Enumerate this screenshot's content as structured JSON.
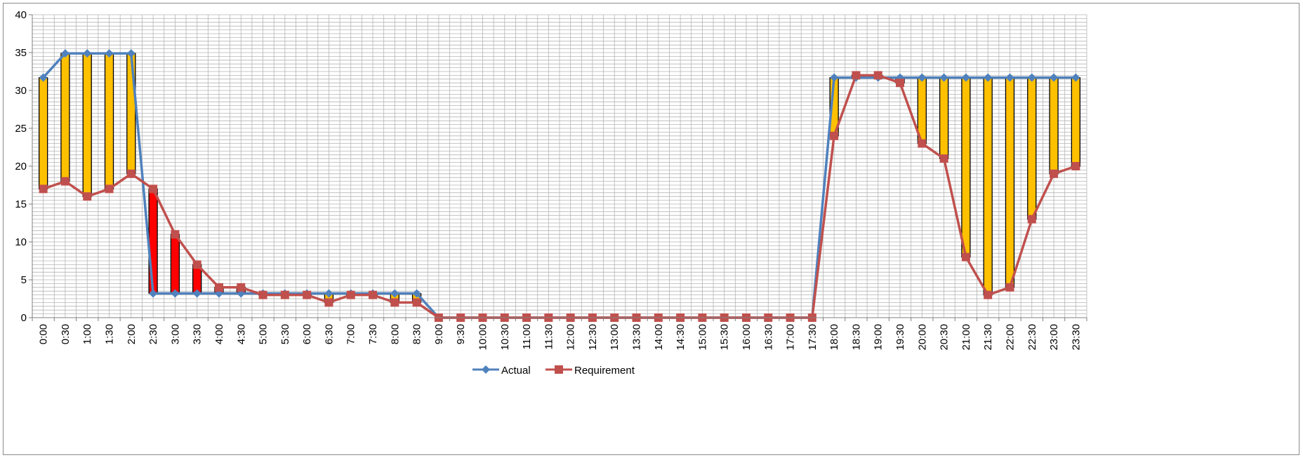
{
  "chart_data": {
    "type": "line",
    "title": "",
    "xlabel": "",
    "ylabel": "",
    "ylim": [
      0,
      40
    ],
    "y_ticks": [
      0,
      5,
      10,
      15,
      20,
      25,
      30,
      35,
      40
    ],
    "grid": true,
    "legend_position": "bottom",
    "categories": [
      "0:00",
      "0:30",
      "1:00",
      "1:30",
      "2:00",
      "2:30",
      "3:00",
      "3:30",
      "4:00",
      "4:30",
      "5:00",
      "5:30",
      "6:00",
      "6:30",
      "7:00",
      "7:30",
      "8:00",
      "8:30",
      "9:00",
      "9:30",
      "10:00",
      "10:30",
      "11:00",
      "11:30",
      "12:00",
      "12:30",
      "13:00",
      "13:30",
      "14:00",
      "14:30",
      "15:00",
      "15:30",
      "16:00",
      "16:30",
      "17:00",
      "17:30",
      "18:00",
      "18:30",
      "19:00",
      "19:30",
      "20:00",
      "20:30",
      "21:00",
      "21:30",
      "22:00",
      "22:30",
      "23:00",
      "23:30"
    ],
    "series": [
      {
        "name": "Actual",
        "color": "#4f81bd",
        "marker": "diamond",
        "values": [
          31.7,
          34.9,
          34.9,
          34.9,
          34.9,
          3.2,
          3.2,
          3.2,
          3.2,
          3.2,
          3.2,
          3.2,
          3.2,
          3.2,
          3.2,
          3.2,
          3.2,
          3.2,
          0,
          0,
          0,
          0,
          0,
          0,
          0,
          0,
          0,
          0,
          0,
          0,
          0,
          0,
          0,
          0,
          0,
          0,
          31.7,
          31.7,
          31.7,
          31.7,
          31.7,
          31.7,
          31.7,
          31.7,
          31.7,
          31.7,
          31.7,
          31.7
        ]
      },
      {
        "name": "Requirement",
        "color": "#c0504d",
        "marker": "square",
        "values": [
          17,
          18,
          16,
          17,
          19,
          17,
          11,
          7,
          4,
          4,
          3,
          3,
          3,
          2,
          3,
          3,
          2,
          2,
          0,
          0,
          0,
          0,
          0,
          0,
          0,
          0,
          0,
          0,
          0,
          0,
          0,
          0,
          0,
          0,
          0,
          0,
          24,
          32,
          32,
          31,
          23,
          21,
          8,
          3,
          4,
          13,
          19,
          20
        ]
      }
    ],
    "gap_bar_colors": {
      "surplus": "#ffc000",
      "deficit": "#ff0000"
    }
  }
}
